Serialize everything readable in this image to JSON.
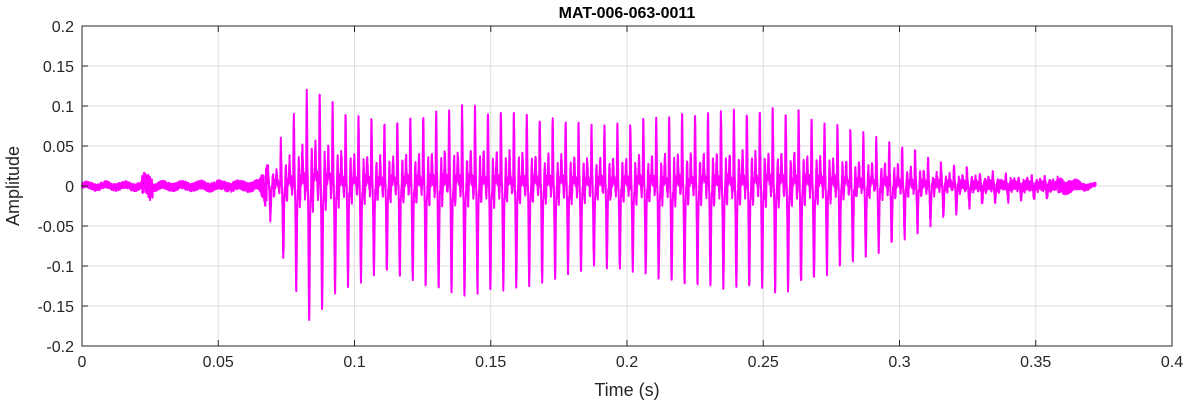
{
  "chart_data": {
    "type": "line",
    "title": "MAT-006-063-0011",
    "xlabel": "Time (s)",
    "ylabel": "Amplitude",
    "xlim": [
      0,
      0.4
    ],
    "ylim": [
      -0.2,
      0.2
    ],
    "xticks": [
      0,
      0.05,
      0.1,
      0.15,
      0.2,
      0.25,
      0.3,
      0.35,
      0.4
    ],
    "xtick_labels": [
      "0",
      "0.05",
      "0.1",
      "0.15",
      "0.2",
      "0.25",
      "0.3",
      "0.35",
      "0.4"
    ],
    "yticks": [
      -0.2,
      -0.15,
      -0.1,
      -0.05,
      0,
      0.05,
      0.1,
      0.15,
      0.2
    ],
    "ytick_labels": [
      "-0.2",
      "-0.15",
      "-0.1",
      "-0.05",
      "0",
      "0.05",
      "0.1",
      "0.15",
      "0.2"
    ],
    "grid": true,
    "series": [
      {
        "color": "#ff00ff",
        "waveform": {
          "t_start": 0.0,
          "t_end": 0.372,
          "voiced_start": 0.068,
          "voiced_end": 0.358,
          "pitch_period": 0.00475,
          "envelope": [
            [
              0.0,
              0.004
            ],
            [
              0.065,
              0.006
            ],
            [
              0.068,
              0.03
            ],
            [
              0.075,
              0.1
            ],
            [
              0.084,
              0.18
            ],
            [
              0.095,
              0.13
            ],
            [
              0.11,
              0.11
            ],
            [
              0.14,
              0.14
            ],
            [
              0.165,
              0.125
            ],
            [
              0.19,
              0.1
            ],
            [
              0.22,
              0.125
            ],
            [
              0.26,
              0.135
            ],
            [
              0.28,
              0.1
            ],
            [
              0.3,
              0.07
            ],
            [
              0.315,
              0.04
            ],
            [
              0.33,
              0.022
            ],
            [
              0.355,
              0.012
            ],
            [
              0.372,
              0.002
            ]
          ]
        }
      }
    ]
  }
}
